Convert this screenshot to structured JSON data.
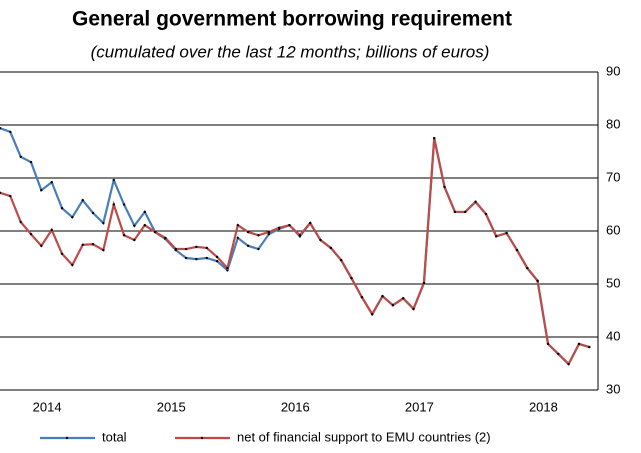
{
  "chart_data": {
    "type": "line",
    "title": "General government borrowing requirement",
    "subtitle": "(cumulated over the last 12 months; billions of euros)",
    "x": [
      2014.12,
      2014.203,
      2014.287,
      2014.37,
      2014.453,
      2014.537,
      2014.62,
      2014.703,
      2014.787,
      2014.87,
      2014.953,
      2015.037,
      2015.12,
      2015.203,
      2015.287,
      2015.37,
      2015.453,
      2015.537,
      2015.62,
      2015.703,
      2015.787,
      2015.87,
      2015.953,
      2016.037,
      2016.12,
      2016.203,
      2016.287,
      2016.37,
      2016.453,
      2016.537,
      2016.62,
      2016.703,
      2016.787,
      2016.87,
      2016.953,
      2017.037,
      2017.12,
      2017.203,
      2017.287,
      2017.37,
      2017.453,
      2017.537,
      2017.62,
      2017.703,
      2017.787,
      2017.87,
      2017.953,
      2018.037,
      2018.12,
      2018.203,
      2018.287,
      2018.37,
      2018.453,
      2018.537,
      2018.62,
      2018.703,
      2018.787,
      2018.87
    ],
    "series": [
      {
        "name": "total",
        "color": "#4a7ebb",
        "values": [
          79.4,
          78.7,
          74,
          73,
          67.7,
          69.2,
          64.3,
          62.6,
          65.8,
          63.4,
          61.5,
          69.6,
          65,
          61,
          63.6,
          59.8,
          58.5,
          56.4,
          54.9,
          54.7,
          54.9,
          54.3,
          52.6,
          58.7,
          57.2,
          56.6,
          59.4,
          60.4,
          61.1,
          59,
          61.5,
          58.3,
          56.8,
          54.5,
          51.1,
          47.5,
          44.3,
          47.7,
          46,
          47.3,
          45.3,
          50.2,
          77.5,
          68.3,
          63.6,
          63.6,
          65.5,
          63.2,
          59,
          59.6,
          56.4,
          53,
          50.6,
          38.7,
          36.8,
          34.9,
          38.7,
          38.1
        ]
      },
      {
        "name": "net of financial support to EMU countries (2)",
        "color": "#be4b48",
        "values": [
          67.2,
          66.6,
          61.7,
          59.4,
          57.2,
          60.2,
          55.7,
          53.6,
          57.4,
          57.5,
          56.4,
          65,
          59.2,
          58.3,
          61.1,
          59.8,
          58.7,
          56.6,
          56.6,
          57,
          56.8,
          55.1,
          53,
          61.1,
          59.8,
          59.2,
          59.8,
          60.6,
          61.1,
          59.2,
          61.5,
          58.3,
          56.8,
          54.5,
          51.1,
          47.5,
          44.3,
          47.7,
          46,
          47.3,
          45.3,
          50.2,
          77.5,
          68.3,
          63.6,
          63.6,
          65.5,
          63.2,
          59,
          59.6,
          56.4,
          53,
          50.6,
          38.7,
          36.8,
          34.9,
          38.7,
          38.1
        ]
      }
    ],
    "xlim": [
      2014.12,
      2018.94
    ],
    "xticks": [
      {
        "value": 2014.5,
        "label": "2014"
      },
      {
        "value": 2015.5,
        "label": "2015"
      },
      {
        "value": 2016.5,
        "label": "2016"
      },
      {
        "value": 2017.5,
        "label": "2017"
      },
      {
        "value": 2018.5,
        "label": "2018"
      }
    ],
    "ylim": [
      30,
      90
    ],
    "yticks": [
      30,
      40,
      50,
      60,
      70,
      80,
      90
    ],
    "grid": true
  }
}
